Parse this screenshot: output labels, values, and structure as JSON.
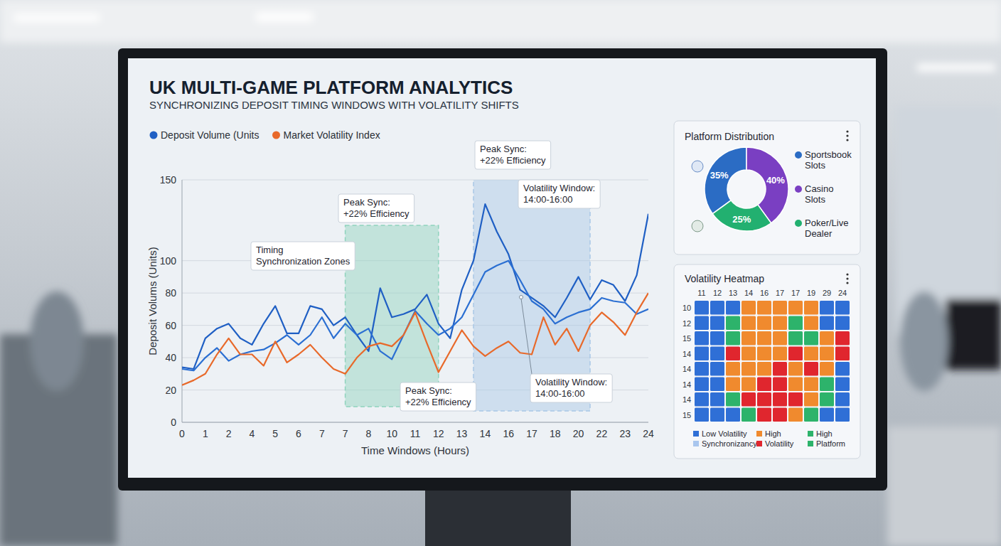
{
  "chart_data": [
    {
      "type": "line",
      "title": "UK MULTI-GAME PLATFORM ANALYTICS",
      "subtitle": "SYNCHRONIZING DEPOSIT TIMING WINDOWS WITH VOLATILITY SHIFTS",
      "x_label": "Time Windows (Hours)",
      "y_label": "Deposit Volums (Units)",
      "categories": [
        "0",
        null,
        "1",
        null,
        "2",
        null,
        "4",
        null,
        "5",
        null,
        "6",
        null,
        "7",
        null,
        "7",
        null,
        "8",
        null,
        "10",
        null,
        "11",
        null,
        "12",
        null,
        "13",
        null,
        "14",
        null,
        "16",
        null,
        "17",
        null,
        "18",
        null,
        "20",
        null,
        "22",
        null,
        "23",
        null,
        "24"
      ],
      "series": [
        {
          "name": "Deposit Volume (Units",
          "color": "#1f5fc4",
          "values": [
            34,
            33,
            52,
            58,
            61,
            52,
            48,
            61,
            72,
            55,
            55,
            72,
            70,
            60,
            65,
            54,
            44,
            83,
            65,
            67,
            70,
            79,
            61,
            52,
            82,
            100,
            135,
            118,
            104,
            82,
            77,
            72,
            65,
            77,
            90,
            76,
            88,
            85,
            75,
            91,
            129
          ]
        },
        {
          "name": "Deposit Volume (Units",
          "color": "#2b6fd2",
          "values": [
            33,
            32,
            40,
            46,
            38,
            42,
            44,
            45,
            49,
            54,
            48,
            54,
            65,
            52,
            61,
            54,
            58,
            44,
            39,
            54,
            69,
            61,
            54,
            58,
            65,
            79,
            93,
            97,
            100,
            88,
            75,
            70,
            61,
            65,
            68,
            70,
            77,
            75,
            74,
            67,
            70
          ]
        },
        {
          "name": "Market Volatility Index",
          "color": "#e8692a",
          "values": [
            23,
            26,
            30,
            42,
            52,
            42,
            42,
            35,
            50,
            37,
            42,
            48,
            40,
            33,
            30,
            40,
            47,
            49,
            47,
            54,
            68,
            49,
            31,
            44,
            57,
            47,
            41,
            46,
            50,
            43,
            42,
            65,
            48,
            58,
            44,
            60,
            68,
            62,
            54,
            68,
            80
          ]
        }
      ],
      "ylim": [
        0,
        150
      ],
      "yticks": [
        0,
        20,
        40,
        60,
        80,
        100,
        150
      ],
      "grid": true,
      "legend": "top",
      "zones": [
        {
          "start": 14,
          "end": 22,
          "color": "#8fd3bd"
        },
        {
          "start": 25,
          "end": 35,
          "color": "#a9c8e6"
        }
      ],
      "annotations": [
        {
          "text": [
            "Timing",
            "Synchronization Zones"
          ]
        },
        {
          "text": [
            "Peak Sync:",
            "+22% Efficiency"
          ]
        },
        {
          "text": [
            "Peak Sync:",
            "+22% Efficiency"
          ]
        },
        {
          "text": [
            "Volatility Window:",
            "14:00-16:00"
          ]
        },
        {
          "text": [
            "Peak Sync:",
            "+22% Efficiency"
          ]
        },
        {
          "text": [
            "Volatility Window:",
            "14:00-16:00"
          ]
        }
      ]
    },
    {
      "type": "pie",
      "title": "Platform Distribution",
      "categories": [
        "Sportsbook Slots",
        "Casino Slots",
        "Poker/Live Dealer"
      ],
      "values": [
        35,
        40,
        25
      ],
      "value_labels": [
        "35%",
        "40%",
        "25%"
      ],
      "colors": [
        "#2b6cc4",
        "#7a3fc2",
        "#22b070"
      ],
      "data_labels": true,
      "legend": "right"
    },
    {
      "type": "heatmap",
      "title": "Volatility Heatmap",
      "x": [
        "11",
        "12",
        "13",
        "14",
        "16",
        "17",
        "17",
        "19",
        "29",
        "24"
      ],
      "y": [
        "10",
        "12",
        "15",
        "14",
        "14",
        "14",
        "14",
        "15"
      ],
      "cells": [
        [
          0,
          0,
          0,
          2,
          2,
          2,
          2,
          2,
          0,
          0
        ],
        [
          0,
          0,
          4,
          2,
          2,
          2,
          4,
          2,
          0,
          0
        ],
        [
          0,
          0,
          4,
          2,
          2,
          2,
          4,
          4,
          2,
          3
        ],
        [
          0,
          0,
          3,
          2,
          2,
          2,
          3,
          2,
          2,
          3
        ],
        [
          0,
          0,
          2,
          2,
          2,
          3,
          2,
          3,
          2,
          0
        ],
        [
          0,
          0,
          2,
          2,
          3,
          3,
          2,
          2,
          4,
          0
        ],
        [
          0,
          0,
          4,
          3,
          3,
          3,
          3,
          2,
          4,
          0
        ],
        [
          0,
          0,
          0,
          4,
          3,
          3,
          2,
          4,
          0,
          0
        ]
      ],
      "levels": [
        {
          "label": "Low Volatility",
          "color": "#2f6fd6"
        },
        {
          "label": "Synchronizancy",
          "color": "#a9c6ee"
        },
        {
          "label": "High",
          "color": "#f08a2e"
        },
        {
          "label": "Volatility",
          "color": "#e0262e"
        },
        {
          "label": "High",
          "color": "#2db36b"
        },
        {
          "label": "Platform",
          "color": "#2db36b"
        }
      ],
      "legend": "bottom"
    }
  ]
}
